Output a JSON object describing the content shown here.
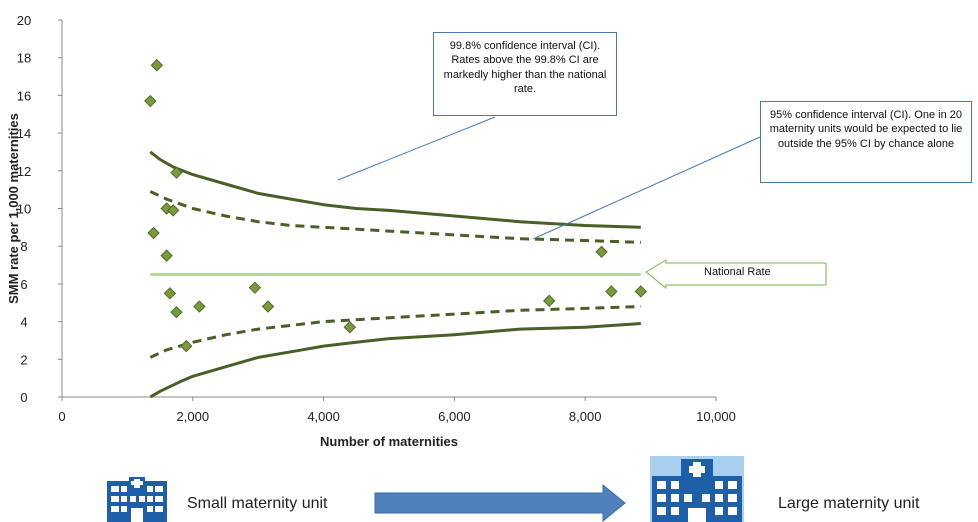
{
  "chart_data": {
    "type": "scatter",
    "xlabel": "Number of maternities",
    "ylabel": "SMM rate per 1,000  maternities",
    "xlim": [
      0,
      10000
    ],
    "ylim": [
      0,
      20
    ],
    "xticks": [
      0,
      2000,
      4000,
      6000,
      8000,
      10000
    ],
    "xtick_labels": [
      "0",
      "2,000",
      "4,000",
      "6,000",
      "8,000",
      "10,000"
    ],
    "yticks": [
      0,
      2,
      4,
      6,
      8,
      10,
      12,
      14,
      16,
      18,
      20
    ],
    "grid": false,
    "national_rate": 6.5,
    "points": [
      {
        "x": 1350,
        "y": 15.7
      },
      {
        "x": 1450,
        "y": 17.6
      },
      {
        "x": 1400,
        "y": 8.7
      },
      {
        "x": 1600,
        "y": 10.0
      },
      {
        "x": 1700,
        "y": 9.9
      },
      {
        "x": 1750,
        "y": 11.9
      },
      {
        "x": 1600,
        "y": 7.5
      },
      {
        "x": 1650,
        "y": 5.5
      },
      {
        "x": 1750,
        "y": 4.5
      },
      {
        "x": 1900,
        "y": 2.7
      },
      {
        "x": 2100,
        "y": 4.8
      },
      {
        "x": 2950,
        "y": 5.8
      },
      {
        "x": 3150,
        "y": 4.8
      },
      {
        "x": 4400,
        "y": 3.7
      },
      {
        "x": 7450,
        "y": 5.1
      },
      {
        "x": 8250,
        "y": 7.7
      },
      {
        "x": 8400,
        "y": 5.6
      },
      {
        "x": 8850,
        "y": 5.6
      }
    ],
    "ci_998_upper": [
      [
        1350,
        13.0
      ],
      [
        1500,
        12.6
      ],
      [
        1700,
        12.2
      ],
      [
        2000,
        11.8
      ],
      [
        2500,
        11.3
      ],
      [
        3000,
        10.8
      ],
      [
        3500,
        10.5
      ],
      [
        4000,
        10.2
      ],
      [
        4500,
        10.0
      ],
      [
        5000,
        9.9
      ],
      [
        6000,
        9.6
      ],
      [
        7000,
        9.3
      ],
      [
        8000,
        9.1
      ],
      [
        8850,
        9.0
      ]
    ],
    "ci_998_lower": [
      [
        1350,
        0.0
      ],
      [
        1500,
        0.3
      ],
      [
        1800,
        0.8
      ],
      [
        2000,
        1.1
      ],
      [
        2500,
        1.6
      ],
      [
        3000,
        2.1
      ],
      [
        3500,
        2.4
      ],
      [
        4000,
        2.7
      ],
      [
        4500,
        2.9
      ],
      [
        5000,
        3.1
      ],
      [
        6000,
        3.3
      ],
      [
        7000,
        3.6
      ],
      [
        8000,
        3.7
      ],
      [
        8850,
        3.9
      ]
    ],
    "ci_95_upper": [
      [
        1350,
        10.9
      ],
      [
        1600,
        10.5
      ],
      [
        2000,
        10.0
      ],
      [
        2500,
        9.6
      ],
      [
        3000,
        9.3
      ],
      [
        3500,
        9.1
      ],
      [
        4000,
        9.0
      ],
      [
        5000,
        8.8
      ],
      [
        6000,
        8.6
      ],
      [
        7000,
        8.4
      ],
      [
        8000,
        8.3
      ],
      [
        8850,
        8.2
      ]
    ],
    "ci_95_lower": [
      [
        1350,
        2.1
      ],
      [
        1600,
        2.5
      ],
      [
        2000,
        2.9
      ],
      [
        2500,
        3.3
      ],
      [
        3000,
        3.6
      ],
      [
        3500,
        3.8
      ],
      [
        4000,
        4.0
      ],
      [
        5000,
        4.2
      ],
      [
        6000,
        4.4
      ],
      [
        7000,
        4.6
      ],
      [
        8000,
        4.7
      ],
      [
        8850,
        4.8
      ]
    ],
    "annotations": {
      "ci998": "99.8% confidence interval (CI). Rates above the 99.8% CI are markedly higher than the national rate.",
      "ci95": "95% confidence interval (CI). One in 20 maternity units would be expected to lie outside the 95% CI by chance alone",
      "national": "National Rate"
    },
    "colors": {
      "points": "#7a9a3e",
      "ci_lines": "#4a5f27",
      "national_line": "#b5d98a",
      "callout_border": "#4a7bb0",
      "arrow_fill": "#4f81bd",
      "icon_blue": "#1f5fa8"
    }
  },
  "footer": {
    "small_label": "Small maternity unit",
    "large_label": "Large maternity unit",
    "small_icon": "hospital-icon",
    "large_icon": "hospital-icon"
  }
}
